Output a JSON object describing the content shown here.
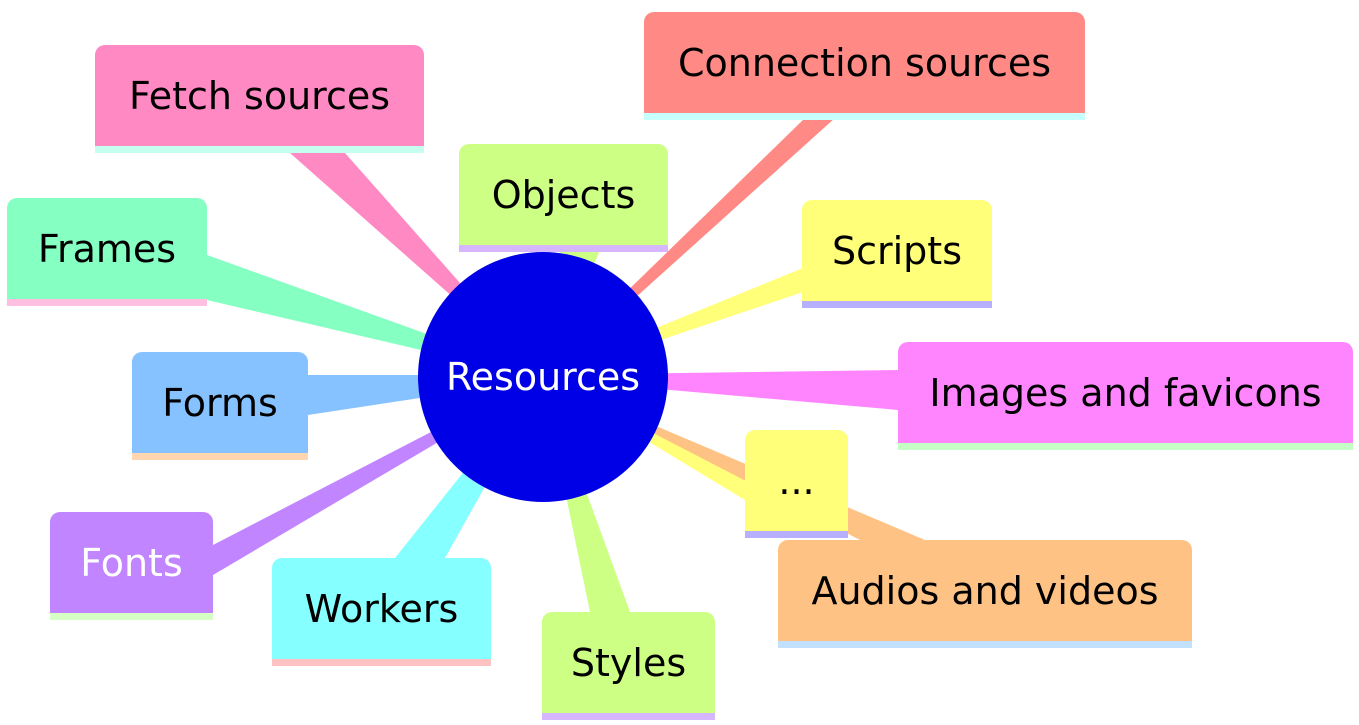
{
  "center": {
    "label": "Resources",
    "color": "#0000e6"
  },
  "branches": [
    {
      "id": "connection-sources",
      "label": "Connection sources",
      "color": "#ff8a85",
      "underline": "#c6fffd"
    },
    {
      "id": "fetch-sources",
      "label": "Fetch sources",
      "color": "#ff89c3",
      "underline": "#c6fff0"
    },
    {
      "id": "objects",
      "label": "Objects",
      "color": "#cdff85",
      "underline": "#d6b6ff"
    },
    {
      "id": "scripts",
      "label": "Scripts",
      "color": "#ffff7a",
      "underline": "#b6b0ff"
    },
    {
      "id": "frames",
      "label": "Frames",
      "color": "#85ffc2",
      "underline": "#ffbfe0"
    },
    {
      "id": "images-and-favicons",
      "label": "Images and favicons",
      "color": "#ff85ff",
      "underline": "#c6ffc6"
    },
    {
      "id": "forms",
      "label": "Forms",
      "color": "#85c2ff",
      "underline": "#ffd6b0"
    },
    {
      "id": "ellipsis",
      "label": "...",
      "color": "#ffff7a",
      "underline": "#b6b0ff"
    },
    {
      "id": "fonts",
      "label": "Fonts",
      "color": "#c185ff",
      "textColor": "#ffffff",
      "underline": "#d6ffc6"
    },
    {
      "id": "workers",
      "label": "Workers",
      "color": "#85ffff",
      "underline": "#ffc2c2"
    },
    {
      "id": "styles",
      "label": "Styles",
      "color": "#cdff85",
      "underline": "#d6b6ff"
    },
    {
      "id": "audios-and-videos",
      "label": "Audios and videos",
      "color": "#ffc285",
      "underline": "#c2e0ff"
    }
  ]
}
